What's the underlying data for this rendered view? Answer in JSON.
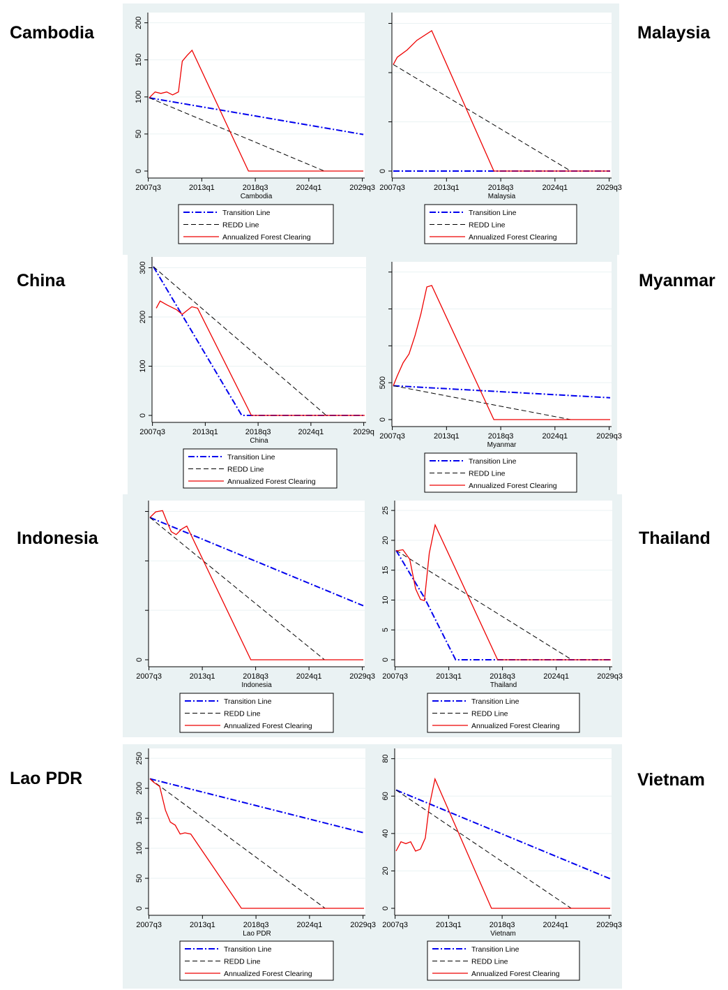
{
  "legend": {
    "transition": "Transition Line",
    "redd": "REDD Line",
    "clearing": "Annualized Forest Clearing"
  },
  "colors": {
    "transition": "#0000ee",
    "redd": "#000000",
    "clearing": "#ee0000",
    "panel_bg": "#eaf2f3",
    "grid": "#eaf2f3"
  },
  "chart_data": [
    {
      "type": "line",
      "title": "Cambodia",
      "xlabel": "Cambodia",
      "x_ticks": [
        "2007q3",
        "2013q1",
        "2018q3",
        "2024q1",
        "2029q3"
      ],
      "y_ticks": [
        "0",
        "50",
        "100",
        "150",
        "200"
      ],
      "ylim": [
        0,
        205
      ],
      "series": [
        {
          "name": "Transition Line",
          "x": [
            2007.6,
            2029.6
          ],
          "y": [
            100,
            50
          ]
        },
        {
          "name": "REDD Line",
          "x": [
            2007.6,
            2025.6,
            2029.6
          ],
          "y": [
            100,
            0,
            0
          ]
        },
        {
          "name": "Annualized Forest Clearing",
          "x": [
            2007.6,
            2008.2,
            2008.8,
            2009.4,
            2010.0,
            2010.6,
            2011.0,
            2011.5,
            2012.0,
            2017.8,
            2029.6
          ],
          "y": [
            100,
            108,
            106,
            108,
            104,
            108,
            150,
            158,
            165,
            0,
            0
          ]
        }
      ]
    },
    {
      "type": "line",
      "title": "Malaysia",
      "xlabel": "Malaysia",
      "x_ticks": [
        "2007q3",
        "2013q1",
        "2018q3",
        "2024q1",
        "2029q3"
      ],
      "y_ticks": [
        "0",
        "",
        "",
        ""
      ],
      "ylim": [
        0,
        3.1
      ],
      "series": [
        {
          "name": "Transition Line",
          "x": [
            2007.6,
            2029.6
          ],
          "y": [
            0,
            0
          ]
        },
        {
          "name": "REDD Line",
          "x": [
            2007.6,
            2025.6,
            2029.6
          ],
          "y": [
            2.2,
            0,
            0
          ]
        },
        {
          "name": "Annualized Forest Clearing",
          "x": [
            2007.6,
            2008.0,
            2009.0,
            2010.0,
            2011.5,
            2017.8,
            2029.6
          ],
          "y": [
            2.2,
            2.35,
            2.5,
            2.7,
            2.9,
            0,
            0
          ]
        }
      ]
    },
    {
      "type": "line",
      "title": "China",
      "xlabel": "China",
      "x_ticks": [
        "2007q3",
        "2013q1",
        "2018q3",
        "2024q1",
        "2029q"
      ],
      "y_ticks": [
        "0",
        "100",
        "200",
        "300"
      ],
      "ylim": [
        0,
        315
      ],
      "series": [
        {
          "name": "Transition Line",
          "x": [
            2007.6,
            2016.8,
            2029.6
          ],
          "y": [
            312,
            0,
            0
          ]
        },
        {
          "name": "REDD Line",
          "x": [
            2007.6,
            2025.6,
            2029.6
          ],
          "y": [
            312,
            0,
            0
          ]
        },
        {
          "name": "Annualized Forest Clearing",
          "x": [
            2007.9,
            2008.3,
            2009.0,
            2010.0,
            2010.6,
            2011.1,
            2011.6,
            2012.2,
            2017.8,
            2029.6
          ],
          "y": [
            225,
            240,
            232,
            222,
            212,
            220,
            228,
            225,
            0,
            0
          ]
        }
      ]
    },
    {
      "type": "line",
      "title": "Myanmar",
      "xlabel": "Myanmar",
      "x_ticks": [
        "2007q3",
        "2013q1",
        "2018q3",
        "2024q1",
        "2029q3"
      ],
      "y_ticks": [
        "0",
        "500",
        "",
        "",
        ""
      ],
      "ylim": [
        0,
        2050
      ],
      "series": [
        {
          "name": "Transition Line",
          "x": [
            2007.6,
            2029.6
          ],
          "y": [
            465,
            300
          ]
        },
        {
          "name": "REDD Line",
          "x": [
            2007.6,
            2025.6,
            2029.6
          ],
          "y": [
            465,
            0,
            0
          ]
        },
        {
          "name": "Annualized Forest Clearing",
          "x": [
            2007.6,
            2008.0,
            2008.6,
            2009.2,
            2009.8,
            2010.4,
            2011.0,
            2011.5,
            2017.8,
            2029.6
          ],
          "y": [
            465,
            600,
            780,
            900,
            1150,
            1450,
            1820,
            1840,
            0,
            0
          ]
        }
      ]
    },
    {
      "type": "line",
      "title": "Indonesia",
      "xlabel": "Indonesia",
      "x_ticks": [
        "2007q3",
        "2013q1",
        "2018q3",
        "2024q1",
        "2029q3"
      ],
      "y_ticks": [
        "0",
        "",
        "",
        ""
      ],
      "ylim": [
        0,
        2.65
      ],
      "series": [
        {
          "name": "Transition Line",
          "x": [
            2007.6,
            2029.6
          ],
          "y": [
            2.5,
            0.95
          ]
        },
        {
          "name": "REDD Line",
          "x": [
            2007.6,
            2025.6,
            2029.6
          ],
          "y": [
            2.5,
            0,
            0
          ]
        },
        {
          "name": "Annualized Forest Clearing",
          "x": [
            2007.6,
            2008.2,
            2008.9,
            2009.3,
            2009.8,
            2010.3,
            2010.9,
            2011.4,
            2018.0,
            2029.6
          ],
          "y": [
            2.5,
            2.6,
            2.62,
            2.45,
            2.25,
            2.2,
            2.3,
            2.35,
            0,
            0
          ]
        }
      ]
    },
    {
      "type": "line",
      "title": "Thailand",
      "xlabel": "Thailand",
      "x_ticks": [
        "2007q3",
        "2013q1",
        "2018q3",
        "2024q1",
        "2029q3"
      ],
      "y_ticks": [
        "0",
        "5",
        "10",
        "15",
        "20",
        "25"
      ],
      "ylim": [
        0,
        25.5
      ],
      "series": [
        {
          "name": "Transition Line",
          "x": [
            2007.6,
            2010.5,
            2013.7,
            2029.6
          ],
          "y": [
            18.5,
            10.5,
            0,
            0
          ]
        },
        {
          "name": "REDD Line",
          "x": [
            2007.6,
            2025.6,
            2029.6
          ],
          "y": [
            18.5,
            0,
            0
          ]
        },
        {
          "name": "Annualized Forest Clearing",
          "x": [
            2007.6,
            2008.3,
            2009.0,
            2009.6,
            2010.1,
            2010.5,
            2011.0,
            2011.6,
            2018.0,
            2029.6
          ],
          "y": [
            18.4,
            18.6,
            17.0,
            12.0,
            10.2,
            10.0,
            18.0,
            22.8,
            0,
            0
          ]
        }
      ]
    },
    {
      "type": "line",
      "title": "Lao PDR",
      "xlabel": "Lao PDR",
      "x_ticks": [
        "2007q3",
        "2013q1",
        "2018q3",
        "2024q1",
        "2029q3"
      ],
      "y_ticks": [
        "0",
        "50",
        "100",
        "150",
        "200",
        "250"
      ],
      "ylim": [
        0,
        255
      ],
      "series": [
        {
          "name": "Transition Line",
          "x": [
            2007.6,
            2029.6
          ],
          "y": [
            218,
            127
          ]
        },
        {
          "name": "REDD Line",
          "x": [
            2007.6,
            2025.6,
            2029.6
          ],
          "y": [
            218,
            0,
            0
          ]
        },
        {
          "name": "Annualized Forest Clearing",
          "x": [
            2007.6,
            2008.0,
            2008.6,
            2009.2,
            2009.7,
            2010.2,
            2010.7,
            2011.2,
            2011.8,
            2017.0,
            2029.6
          ],
          "y": [
            218,
            212,
            205,
            165,
            145,
            140,
            125,
            127,
            125,
            0,
            0
          ]
        }
      ]
    },
    {
      "type": "line",
      "title": "Vietnam",
      "xlabel": "Vietnam",
      "x_ticks": [
        "2007q3",
        "2013q1",
        "2018q3",
        "2024q1",
        "2029q3"
      ],
      "y_ticks": [
        "0",
        "20",
        "40",
        "60",
        "80"
      ],
      "ylim": [
        0,
        82
      ],
      "series": [
        {
          "name": "Transition Line",
          "x": [
            2007.6,
            2029.6
          ],
          "y": [
            64,
            16
          ]
        },
        {
          "name": "REDD Line",
          "x": [
            2007.6,
            2025.6,
            2029.6
          ],
          "y": [
            64,
            0,
            0
          ]
        },
        {
          "name": "Annualized Forest Clearing",
          "x": [
            2007.6,
            2008.1,
            2008.6,
            2009.1,
            2009.6,
            2010.1,
            2010.6,
            2011.0,
            2011.6,
            2017.4,
            2029.6
          ],
          "y": [
            31,
            36,
            35,
            36,
            31,
            32,
            38,
            55,
            70,
            0,
            0
          ]
        }
      ]
    }
  ]
}
